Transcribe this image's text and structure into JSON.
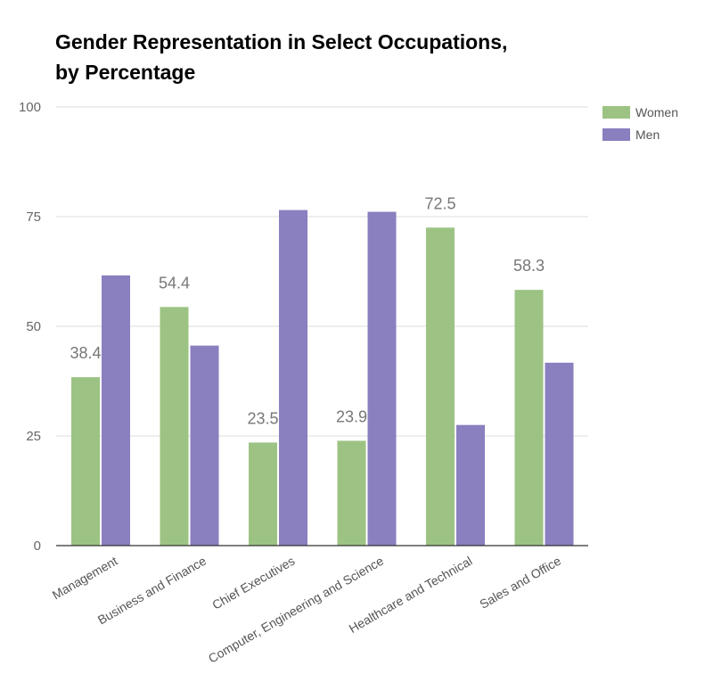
{
  "chart_data": {
    "type": "bar",
    "title_lines": [
      "Gender Representation in Select Occupations,",
      "by Percentage"
    ],
    "xlabel": "",
    "ylabel": "",
    "ylim": [
      0,
      100
    ],
    "yticks": [
      0,
      25,
      50,
      75,
      100
    ],
    "grid": true,
    "legend_position": "top-right",
    "categories": [
      "Management",
      "Business and Finance",
      "Chief Executives",
      "Computer, Engineering and Science",
      "Healthcare and Technical",
      "Sales and Office"
    ],
    "series": [
      {
        "name": "Women",
        "color": "#9cc383",
        "values": [
          38.4,
          54.4,
          23.5,
          23.9,
          72.5,
          58.3
        ],
        "data_labels": [
          "38.4",
          "54.4",
          "23.5",
          "23.9",
          "72.5",
          "58.3"
        ]
      },
      {
        "name": "Men",
        "color": "#8a7fbf",
        "values": [
          61.6,
          45.6,
          76.5,
          76.1,
          27.5,
          41.7
        ]
      }
    ]
  }
}
